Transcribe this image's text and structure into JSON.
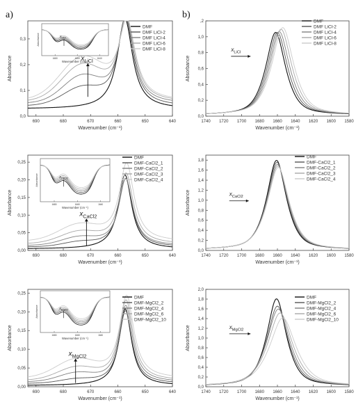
{
  "panel_labels": [
    "a)",
    "b)"
  ],
  "common": {
    "xlabel": "Wavenumber (cm⁻¹)",
    "ylabel": "Absorbance",
    "inset_xlabel": "Wavenumber (cm⁻¹)",
    "inset_ylabel": "Absorbance"
  },
  "colors": [
    "#111111",
    "#555555",
    "#808080",
    "#a8a8a8",
    "#cbcbcb"
  ],
  "chart_data": [
    {
      "type": "line",
      "xlabel": "Wavenumber (cm⁻¹)",
      "ylabel": "Absorbance",
      "xlim": [
        693,
        640
      ],
      "ylim": [
        0,
        0.37
      ],
      "xticks": [
        690,
        680,
        670,
        660,
        650,
        640
      ],
      "yticks": [
        0.0,
        0.1,
        0.2,
        0.3
      ],
      "yticklabels": [
        "0,0",
        "0,1",
        "0,2",
        "0,3"
      ],
      "legend": [
        "DMF",
        "DMF LiCl-2",
        "DMF LiCl-4",
        "DMF LiCl-6",
        "DMF LiCl-8"
      ],
      "legend_position": "top-right",
      "annotation": {
        "main": "x",
        "sub": "LiCl",
        "x": 671,
        "y_from": 0.075,
        "y_to": 0.205
      },
      "peaks": [
        {
          "center": 657.4,
          "height": 0.35,
          "width": 3.4,
          "base": 0.028,
          "shoulder_center": 673,
          "shoulder": 0.0,
          "shoulder_width": 7
        },
        {
          "center": 657.2,
          "height": 0.34,
          "width": 3.5,
          "base": 0.038,
          "shoulder_center": 673,
          "shoulder": 0.065,
          "shoulder_width": 7
        },
        {
          "center": 657.0,
          "height": 0.33,
          "width": 3.5,
          "base": 0.048,
          "shoulder_center": 673,
          "shoulder": 0.1,
          "shoulder_width": 7
        },
        {
          "center": 656.8,
          "height": 0.32,
          "width": 3.6,
          "base": 0.055,
          "shoulder_center": 673,
          "shoulder": 0.135,
          "shoulder_width": 7.5
        },
        {
          "center": 656.6,
          "height": 0.3,
          "width": 3.7,
          "base": 0.06,
          "shoulder_center": 673,
          "shoulder": 0.16,
          "shoulder_width": 8
        }
      ],
      "inset": {
        "label_main": "x",
        "label_sub": "LiCl",
        "xticks": [
          1680,
          1660,
          1640
        ],
        "xlim": [
          1692,
          1632
        ]
      }
    },
    {
      "type": "line",
      "xlabel": "Wavenumber (cm⁻¹)",
      "ylabel": "Absorbance",
      "xlim": [
        1740,
        1580
      ],
      "ylim": [
        0,
        1.2
      ],
      "xticks": [
        1740,
        1720,
        1700,
        1680,
        1660,
        1640,
        1620,
        1600,
        1580
      ],
      "yticks": [
        0.0,
        0.2,
        0.4,
        0.6,
        0.8,
        1.0,
        1.2
      ],
      "yticklabels": [
        "0,0",
        "0,2",
        "0,4",
        "0,6",
        "0,8",
        "1,0",
        "1,2"
      ],
      "yticklabels_override": {
        "1.2": ",2"
      },
      "legend": [
        "DMF",
        "DMF LiCl-2",
        "DMF LiCl-4",
        "DMF LiCl-6",
        "DMF LiCl-8"
      ],
      "legend_position": "top-right",
      "annotation": {
        "main": "x",
        "sub": "LiCl",
        "x": 1704,
        "y": 0.78,
        "arrow_to": 1690
      },
      "peaks": [
        {
          "center": 1662,
          "height": 1.04,
          "width": 12
        },
        {
          "center": 1660,
          "height": 1.04,
          "width": 12.3
        },
        {
          "center": 1658,
          "height": 1.05,
          "width": 12.6
        },
        {
          "center": 1656,
          "height": 1.08,
          "width": 12.9
        },
        {
          "center": 1654,
          "height": 1.1,
          "width": 13.2
        }
      ]
    },
    {
      "type": "line",
      "xlabel": "Wavenumber (cm⁻¹)",
      "ylabel": "Absorbance",
      "xlim": [
        693,
        640
      ],
      "ylim": [
        0,
        0.27
      ],
      "xticks": [
        690,
        680,
        670,
        660,
        650,
        640
      ],
      "yticks": [
        0.0,
        0.05,
        0.1,
        0.15,
        0.2,
        0.25
      ],
      "yticklabels": [
        "0,00",
        "0,05",
        "0,10",
        "0,15",
        "0,20",
        "0,25"
      ],
      "legend": [
        "DMF",
        "DMF-CaCl2_1",
        "DMF-CaCl2_2",
        "DMF-CaCl2_3",
        "DMF-CaCl2_4"
      ],
      "legend_position": "top-right",
      "annotation": {
        "main": "x",
        "sub": "CaCl2",
        "x": 671.5,
        "y_from": 0.012,
        "y_to": 0.09
      },
      "peaks": [
        {
          "center": 657.4,
          "height": 0.21,
          "width": 3.0,
          "base": 0.004,
          "shoulder_center": 674,
          "shoulder": 0.0,
          "shoulder_width": 6
        },
        {
          "center": 657.2,
          "height": 0.195,
          "width": 3.1,
          "base": 0.009,
          "shoulder_center": 674,
          "shoulder": 0.012,
          "shoulder_width": 6
        },
        {
          "center": 657.1,
          "height": 0.19,
          "width": 3.1,
          "base": 0.013,
          "shoulder_center": 674,
          "shoulder": 0.022,
          "shoulder_width": 6.5
        },
        {
          "center": 657.0,
          "height": 0.2,
          "width": 3.2,
          "base": 0.018,
          "shoulder_center": 674,
          "shoulder": 0.032,
          "shoulder_width": 7
        },
        {
          "center": 656.8,
          "height": 0.22,
          "width": 3.3,
          "base": 0.025,
          "shoulder_center": 674,
          "shoulder": 0.045,
          "shoulder_width": 7.5
        }
      ],
      "inset": {
        "label_main": "x",
        "label_sub": "CaCl2",
        "xticks": [
          1680,
          1660,
          1640
        ],
        "xlim": [
          1692,
          1632
        ]
      }
    },
    {
      "type": "line",
      "xlabel": "Wavenumber (cm⁻¹)",
      "ylabel": "Absorbance",
      "xlim": [
        1740,
        1580
      ],
      "ylim": [
        0,
        1.9
      ],
      "xticks": [
        1740,
        1720,
        1700,
        1680,
        1660,
        1640,
        1620,
        1600,
        1580
      ],
      "yticks": [
        0.0,
        0.2,
        0.4,
        0.6,
        0.8,
        1.0,
        1.2,
        1.4,
        1.6,
        1.8
      ],
      "yticklabels": [
        "0,0",
        "0,2",
        "0,4",
        "0,6",
        "0,8",
        "1,0",
        "1,2",
        "1,4",
        "1,6",
        "1,8"
      ],
      "legend": [
        "DMF",
        "DMF-CaCl2_1",
        "DMF-CaCl2_2",
        "DMF-CaCl2_3",
        "DMF-CaCl2_4"
      ],
      "legend_position": "top-right",
      "annotation": {
        "main": "x",
        "sub": "CaCl2",
        "x": 1706,
        "y": 1.03,
        "arrow_to": 1692
      },
      "peaks": [
        {
          "center": 1661,
          "height": 1.78,
          "width": 12
        },
        {
          "center": 1660.5,
          "height": 1.74,
          "width": 12.3
        },
        {
          "center": 1660,
          "height": 1.7,
          "width": 12.6
        },
        {
          "center": 1659.5,
          "height": 1.67,
          "width": 12.9
        },
        {
          "center": 1659,
          "height": 1.64,
          "width": 13.2
        }
      ]
    },
    {
      "type": "line",
      "xlabel": "Wavenumber (cm⁻¹)",
      "ylabel": "Absorbance",
      "xlim": [
        693,
        640
      ],
      "ylim": [
        0,
        0.26
      ],
      "xticks": [
        690,
        680,
        670,
        660,
        650,
        640
      ],
      "yticks": [
        0.0,
        0.05,
        0.1,
        0.15,
        0.2,
        0.25
      ],
      "yticklabels": [
        "0,00",
        "0,05",
        "0,10",
        "0,15",
        "0,20",
        "0,25"
      ],
      "legend": [
        "DMF",
        "DMF-MgCl2_2",
        "DMF-MgCl2_4",
        "DMF-MgCl2_6",
        "DMF-MgCl2_10"
      ],
      "legend_position": "top-right",
      "annotation": {
        "main": "x",
        "sub": "MgCl2",
        "x": 675.5,
        "y_from": 0.01,
        "y_to": 0.075
      },
      "peaks": [
        {
          "center": 657.3,
          "height": 0.205,
          "width": 2.8,
          "base": 0.003,
          "shoulder_center": 675,
          "shoulder": 0.0,
          "shoulder_width": 6
        },
        {
          "center": 657.2,
          "height": 0.195,
          "width": 2.9,
          "base": 0.008,
          "shoulder_center": 675,
          "shoulder": 0.01,
          "shoulder_width": 6
        },
        {
          "center": 657.1,
          "height": 0.205,
          "width": 3.0,
          "base": 0.012,
          "shoulder_center": 675,
          "shoulder": 0.022,
          "shoulder_width": 6.5
        },
        {
          "center": 657.0,
          "height": 0.215,
          "width": 3.1,
          "base": 0.016,
          "shoulder_center": 675,
          "shoulder": 0.033,
          "shoulder_width": 7
        },
        {
          "center": 656.8,
          "height": 0.22,
          "width": 3.2,
          "base": 0.022,
          "shoulder_center": 675,
          "shoulder": 0.048,
          "shoulder_width": 7.5
        }
      ],
      "inset": {
        "label_main": "x",
        "label_sub": "MgCl2",
        "xticks": [
          1680,
          1660,
          1640
        ],
        "xlim": [
          1692,
          1632
        ]
      }
    },
    {
      "type": "line",
      "xlabel": "Wavenumber (cm⁻¹)",
      "ylabel": "Absorbance",
      "xlim": [
        1740,
        1580
      ],
      "ylim": [
        0,
        2.0
      ],
      "xticks": [
        1740,
        1720,
        1700,
        1680,
        1660,
        1640,
        1620,
        1600,
        1580
      ],
      "yticks": [
        0.0,
        0.2,
        0.4,
        0.6,
        0.8,
        1.0,
        1.2,
        1.4,
        1.6,
        1.8,
        2.0
      ],
      "yticklabels": [
        "0,0",
        "0,2",
        "0,4",
        "0,6",
        "0,8",
        "1,0",
        "1,2",
        "1,4",
        "1,6",
        "1,8",
        "2,0"
      ],
      "legend": [
        "DMF",
        "DMF-MgCl2_2",
        "DMF-MgCl2_4",
        "DMF-MgCl2_6",
        "DMF-MgCl2_10"
      ],
      "legend_position": "top-right",
      "annotation": {
        "main": "x",
        "sub": "MgCl2",
        "x": 1706,
        "y": 1.13,
        "arrow_to": 1690
      },
      "peaks": [
        {
          "center": 1661,
          "height": 1.79,
          "width": 12
        },
        {
          "center": 1660,
          "height": 1.64,
          "width": 13
        },
        {
          "center": 1659,
          "height": 1.58,
          "width": 14
        },
        {
          "center": 1657,
          "height": 1.5,
          "width": 15
        },
        {
          "center": 1654,
          "height": 1.4,
          "width": 16
        }
      ]
    }
  ]
}
